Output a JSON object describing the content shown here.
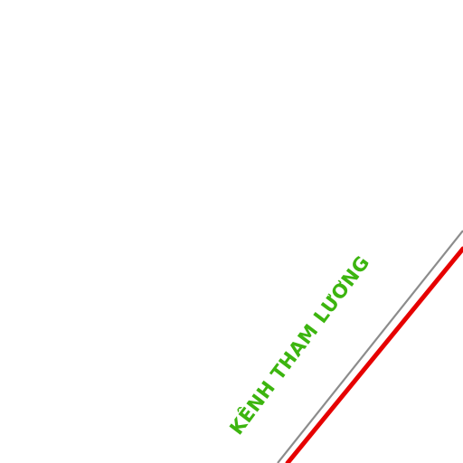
{
  "map": {
    "background_color": "#ffffff",
    "canal": {
      "label": "KÊNH THAM LƯƠNG",
      "label_color": "#3cb50f"
    },
    "boundary_line": {
      "color": "#8c8c8c"
    },
    "road": {
      "color": "#e60000"
    }
  }
}
